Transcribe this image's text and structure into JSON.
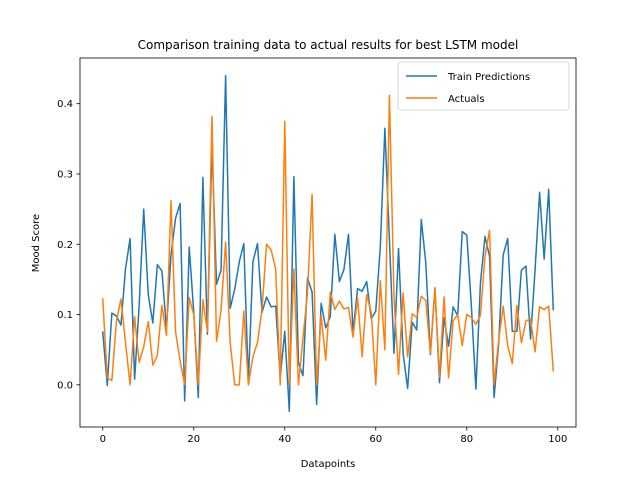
{
  "chart_data": {
    "type": "line",
    "title": "Comparison training data to actual results for best LSTM model",
    "xlabel": "Datapoints",
    "ylabel": "Mood Score",
    "xlim": [
      -5,
      104
    ],
    "ylim": [
      -0.06,
      0.465
    ],
    "xticks": [
      0,
      20,
      40,
      60,
      80,
      100
    ],
    "yticks": [
      0.0,
      0.1,
      0.2,
      0.3,
      0.4
    ],
    "ytick_labels": [
      "0.0",
      "0.1",
      "0.2",
      "0.3",
      "0.4"
    ],
    "grid": false,
    "legend_position": "top-right",
    "series": [
      {
        "name": "Train Predictions",
        "color": "#1f77b4",
        "values": [
          0.075,
          -0.001,
          0.102,
          0.098,
          0.085,
          0.165,
          0.208,
          0.008,
          0.113,
          0.25,
          0.128,
          0.088,
          0.171,
          0.162,
          0.08,
          0.185,
          0.237,
          0.258,
          -0.023,
          0.196,
          0.103,
          -0.018,
          0.295,
          0.072,
          0.343,
          0.143,
          0.163,
          0.44,
          0.109,
          0.136,
          0.175,
          0.201,
          0.003,
          0.175,
          0.201,
          0.103,
          0.125,
          0.111,
          0.112,
          0.011,
          0.076,
          -0.038,
          0.296,
          0.032,
          0.013,
          0.152,
          0.132,
          -0.028,
          0.116,
          0.081,
          0.097,
          0.214,
          0.147,
          0.164,
          0.214,
          0.075,
          0.137,
          0.133,
          0.147,
          0.094,
          0.105,
          0.197,
          0.365,
          0.206,
          0.045,
          0.194,
          0.045,
          -0.005,
          0.089,
          0.078,
          0.235,
          0.173,
          0.043,
          0.138,
          0.003,
          0.095,
          0.055,
          0.111,
          0.098,
          0.218,
          0.213,
          0.113,
          -0.006,
          0.145,
          0.211,
          0.183,
          -0.018,
          0.058,
          0.185,
          0.208,
          0.076,
          0.076,
          0.163,
          0.169,
          0.065,
          0.163,
          0.274,
          0.179,
          0.278,
          0.107
        ]
      },
      {
        "name": "Actuals",
        "color": "#ff7f0e",
        "values": [
          0.122,
          0.01,
          0.006,
          0.09,
          0.122,
          0.06,
          0.0,
          0.097,
          0.032,
          0.054,
          0.09,
          0.028,
          0.042,
          0.113,
          0.07,
          0.262,
          0.075,
          0.034,
          0.0,
          0.124,
          0.1,
          0.0,
          0.121,
          0.076,
          0.382,
          0.062,
          0.106,
          0.203,
          0.06,
          0.0,
          0.0,
          0.105,
          0.0,
          0.04,
          0.06,
          0.108,
          0.2,
          0.192,
          0.165,
          0.0,
          0.375,
          0.0,
          0.165,
          0.0,
          0.066,
          0.132,
          0.271,
          0.0,
          0.099,
          0.035,
          0.132,
          0.107,
          0.119,
          0.108,
          0.11,
          0.068,
          0.124,
          0.04,
          0.128,
          0.103,
          0.0,
          0.148,
          0.05,
          0.412,
          0.126,
          0.015,
          0.131,
          0.04,
          0.101,
          0.096,
          0.126,
          0.12,
          0.045,
          0.137,
          0.011,
          0.125,
          0.01,
          0.091,
          0.1,
          0.056,
          0.1,
          0.096,
          0.086,
          0.099,
          0.183,
          0.22,
          0.0,
          0.063,
          0.112,
          0.055,
          0.03,
          0.113,
          0.06,
          0.091,
          0.094,
          0.047,
          0.111,
          0.107,
          0.112,
          0.02
        ]
      }
    ]
  }
}
